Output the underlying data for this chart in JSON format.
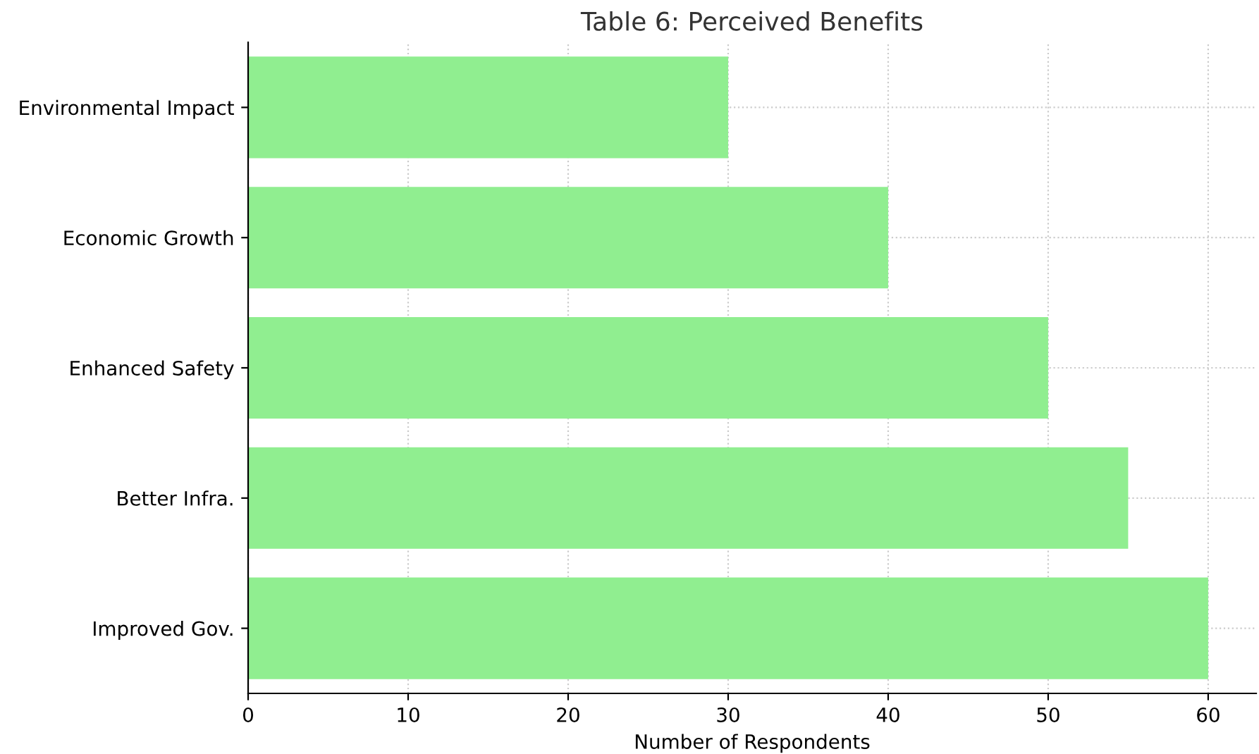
{
  "chart_data": {
    "type": "bar",
    "orientation": "horizontal",
    "title": "Table 6: Perceived Benefits",
    "xlabel": "Number of Respondents",
    "categories": [
      "Environmental Impact",
      "Economic Growth",
      "Enhanced Safety",
      "Better Infra.",
      "Improved Gov."
    ],
    "values": [
      30,
      40,
      50,
      55,
      60
    ],
    "color": "#90ee90",
    "xlim": [
      0,
      63
    ],
    "xticks": [
      0,
      10,
      20,
      30,
      40,
      50,
      60
    ],
    "grid": true
  }
}
